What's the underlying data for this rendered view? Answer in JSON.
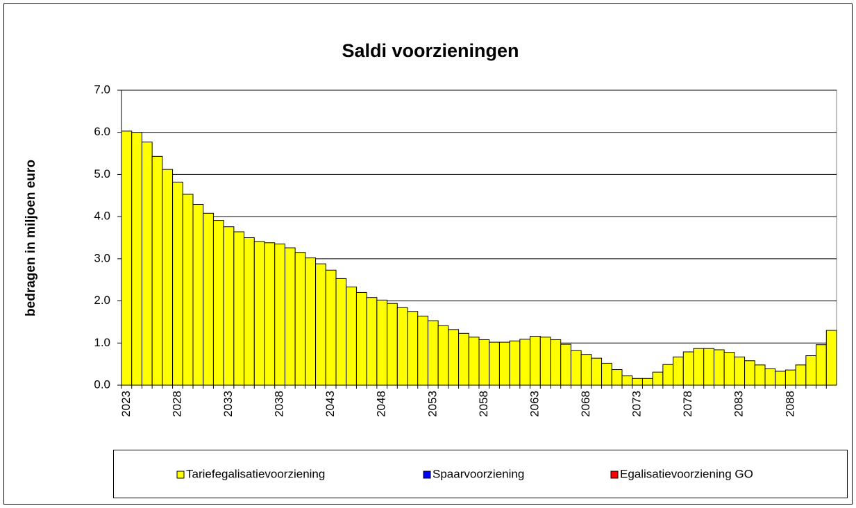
{
  "chart_data": {
    "type": "bar",
    "stacked": true,
    "title": "Saldi voorzieningen",
    "ylabel": "bedragen in miljoen euro",
    "categories": [
      "2023",
      null,
      null,
      null,
      null,
      "2028",
      null,
      null,
      null,
      null,
      "2033",
      null,
      null,
      null,
      null,
      "2038",
      null,
      null,
      null,
      null,
      "2043",
      null,
      null,
      null,
      null,
      "2048",
      null,
      null,
      null,
      null,
      "2053",
      null,
      null,
      null,
      null,
      "2058",
      null,
      null,
      null,
      null,
      "2063",
      null,
      null,
      null,
      null,
      "2068",
      null,
      null,
      null,
      null,
      "2073",
      null,
      null,
      null,
      null,
      "2078",
      null,
      null,
      null,
      null,
      "2083",
      null,
      null,
      null,
      null,
      "2088",
      null,
      null,
      null,
      null
    ],
    "series": [
      {
        "name": "Tariefegalisatievoorziening",
        "color": "#ffff00",
        "values": [
          6.03,
          6.0,
          5.77,
          5.43,
          5.12,
          4.82,
          4.53,
          4.29,
          4.08,
          3.91,
          3.76,
          3.64,
          3.5,
          3.41,
          3.38,
          3.35,
          3.26,
          3.15,
          3.02,
          2.88,
          2.73,
          2.53,
          2.33,
          2.2,
          2.08,
          2.02,
          1.94,
          1.84,
          1.75,
          1.64,
          1.53,
          1.41,
          1.32,
          1.23,
          1.14,
          1.08,
          1.02,
          1.02,
          1.05,
          1.09,
          1.16,
          1.14,
          1.08,
          0.97,
          0.82,
          0.73,
          0.64,
          0.52,
          0.37,
          0.22,
          0.16,
          0.16,
          0.31,
          0.49,
          0.67,
          0.79,
          0.87,
          0.87,
          0.84,
          0.78,
          0.67,
          0.58,
          0.48,
          0.39,
          0.33,
          0.36,
          0.48,
          0.7,
          0.96,
          1.3
        ]
      },
      {
        "name": "Spaarvoorziening",
        "color": "#0000ff",
        "values": [
          0,
          0,
          0,
          0,
          0,
          0,
          0,
          0,
          0,
          0,
          0,
          0,
          0,
          0,
          0,
          0,
          0,
          0,
          0,
          0,
          0,
          0,
          0,
          0,
          0,
          0,
          0,
          0,
          0,
          0,
          0,
          0,
          0,
          0,
          0,
          0,
          0,
          0,
          0,
          0,
          0,
          0,
          0,
          0,
          0,
          0,
          0,
          0,
          0,
          0,
          0,
          0,
          0,
          0,
          0,
          0,
          0,
          0,
          0,
          0,
          0,
          0,
          0,
          0,
          0,
          0,
          0,
          0,
          0,
          0
        ]
      },
      {
        "name": "Egalisatievoorziening GO",
        "color": "#ff0000",
        "values": [
          0,
          0,
          0,
          0,
          0,
          0,
          0,
          0,
          0,
          0,
          0,
          0,
          0,
          0,
          0,
          0,
          0,
          0,
          0,
          0,
          0,
          0,
          0,
          0,
          0,
          0,
          0,
          0,
          0,
          0,
          0,
          0,
          0,
          0,
          0,
          0,
          0,
          0,
          0,
          0,
          0,
          0,
          0,
          0,
          0,
          0,
          0,
          0,
          0,
          0,
          0,
          0,
          0,
          0,
          0,
          0,
          0,
          0,
          0,
          0,
          0,
          0,
          0,
          0,
          0,
          0,
          0,
          0,
          0,
          0
        ]
      }
    ],
    "ylim": [
      0,
      7
    ],
    "yticks": [
      {
        "value": 0,
        "label": "0.0"
      },
      {
        "value": 1,
        "label": "1.0"
      },
      {
        "value": 2,
        "label": "2.0"
      },
      {
        "value": 3,
        "label": "3.0"
      },
      {
        "value": 4,
        "label": "4.0"
      },
      {
        "value": 5,
        "label": "5.0"
      },
      {
        "value": 6,
        "label": "6.0"
      },
      {
        "value": 7,
        "label": "7.0"
      }
    ],
    "grid": true,
    "legend": "bottom"
  }
}
